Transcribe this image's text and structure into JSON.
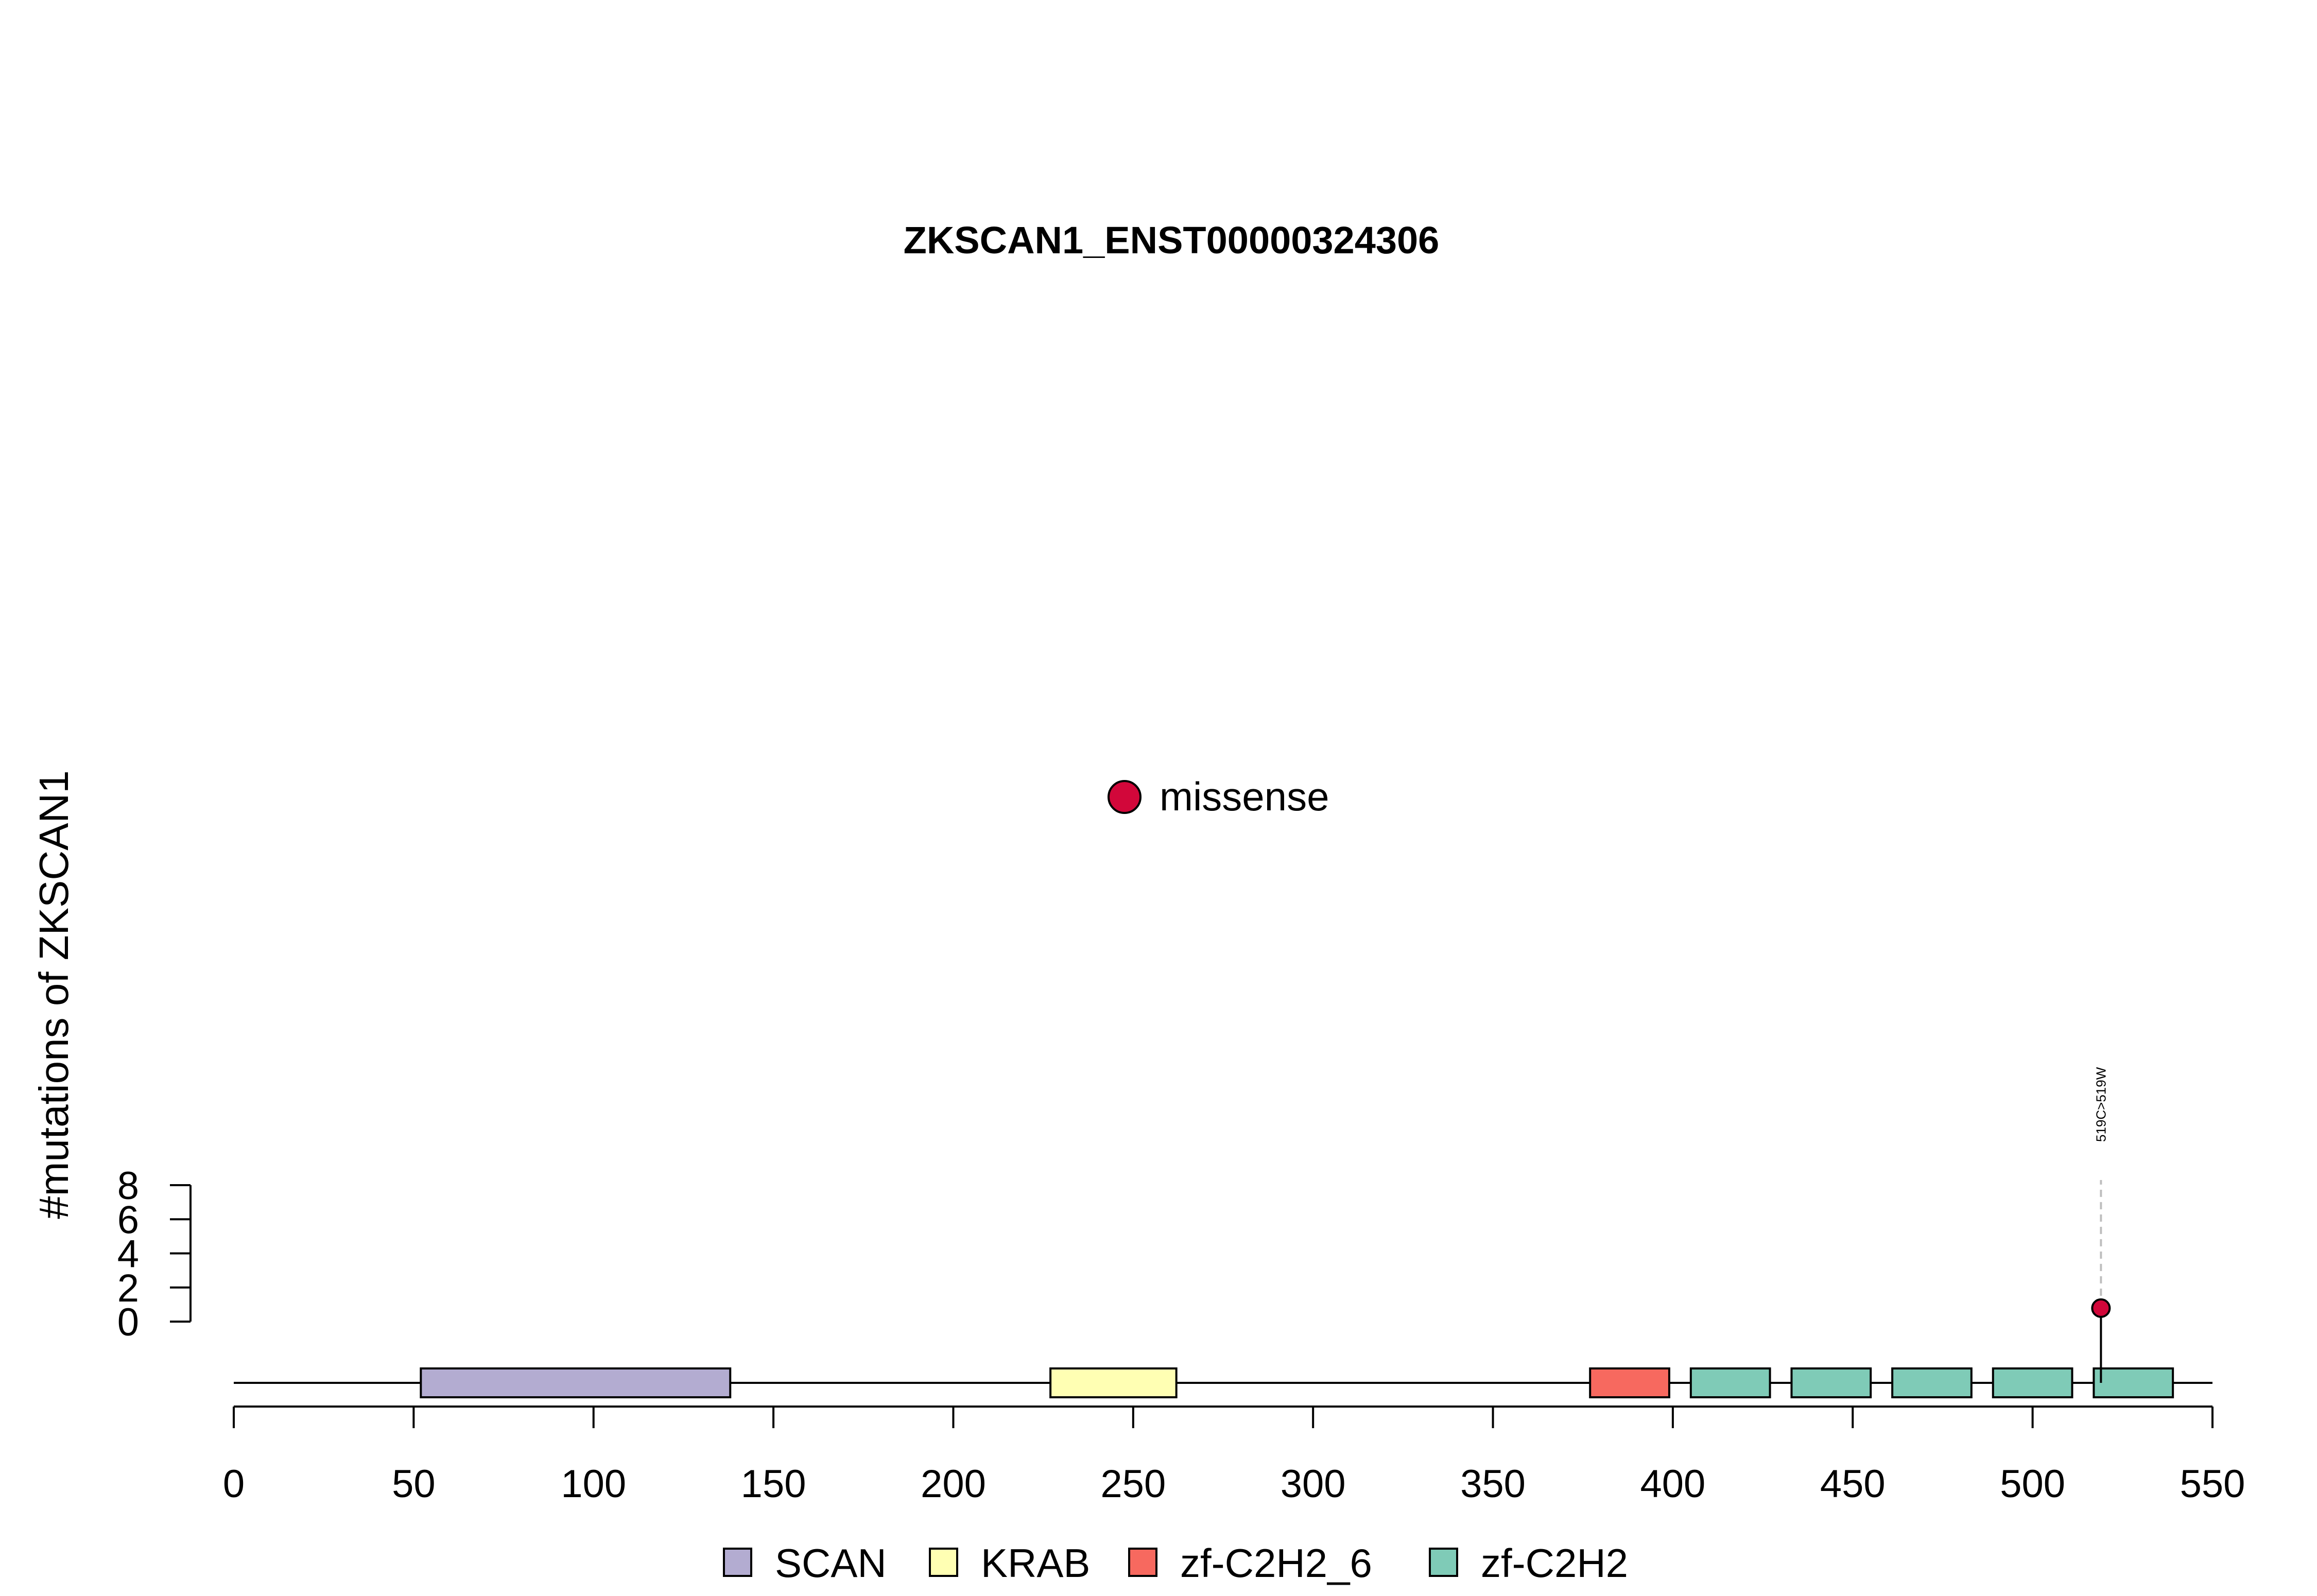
{
  "chart_data": {
    "type": "lollipop",
    "title": "ZKSCAN1_ENST00000324306",
    "ylabel": "#mutations of ZKSCAN1",
    "xlim": [
      0,
      550
    ],
    "x_ticks": [
      0,
      50,
      100,
      150,
      200,
      250,
      300,
      350,
      400,
      450,
      500,
      550
    ],
    "y_ticks": [
      0,
      2,
      4,
      6,
      8
    ],
    "ylim": [
      0,
      8
    ],
    "protein_length": 550,
    "domains": [
      {
        "name": "SCAN",
        "start": 52,
        "end": 138,
        "color": "#B3ACD1"
      },
      {
        "name": "KRAB",
        "start": 227,
        "end": 262,
        "color": "#FFFFB3"
      },
      {
        "name": "zf-C2H2_6",
        "start": 377,
        "end": 399,
        "color": "#F7695F"
      },
      {
        "name": "zf-C2H2",
        "start": 405,
        "end": 427,
        "color": "#7FCBB7"
      },
      {
        "name": "zf-C2H2",
        "start": 433,
        "end": 455,
        "color": "#7FCBB7"
      },
      {
        "name": "zf-C2H2",
        "start": 461,
        "end": 483,
        "color": "#7FCBB7"
      },
      {
        "name": "zf-C2H2",
        "start": 489,
        "end": 511,
        "color": "#7FCBB7"
      },
      {
        "name": "zf-C2H2",
        "start": 517,
        "end": 539,
        "color": "#7FCBB7"
      }
    ],
    "mutations": [
      {
        "position": 519,
        "count": 1,
        "label": "519C>519W",
        "type": "missense",
        "color": "#D2073A"
      }
    ],
    "mutation_legend": [
      {
        "label": "missense",
        "color": "#D2073A"
      }
    ],
    "domain_legend": [
      {
        "label": "SCAN",
        "color": "#B3ACD1"
      },
      {
        "label": "KRAB",
        "color": "#FFFFB3"
      },
      {
        "label": "zf-C2H2_6",
        "color": "#F7695F"
      },
      {
        "label": "zf-C2H2",
        "color": "#7FCBB7"
      }
    ]
  }
}
